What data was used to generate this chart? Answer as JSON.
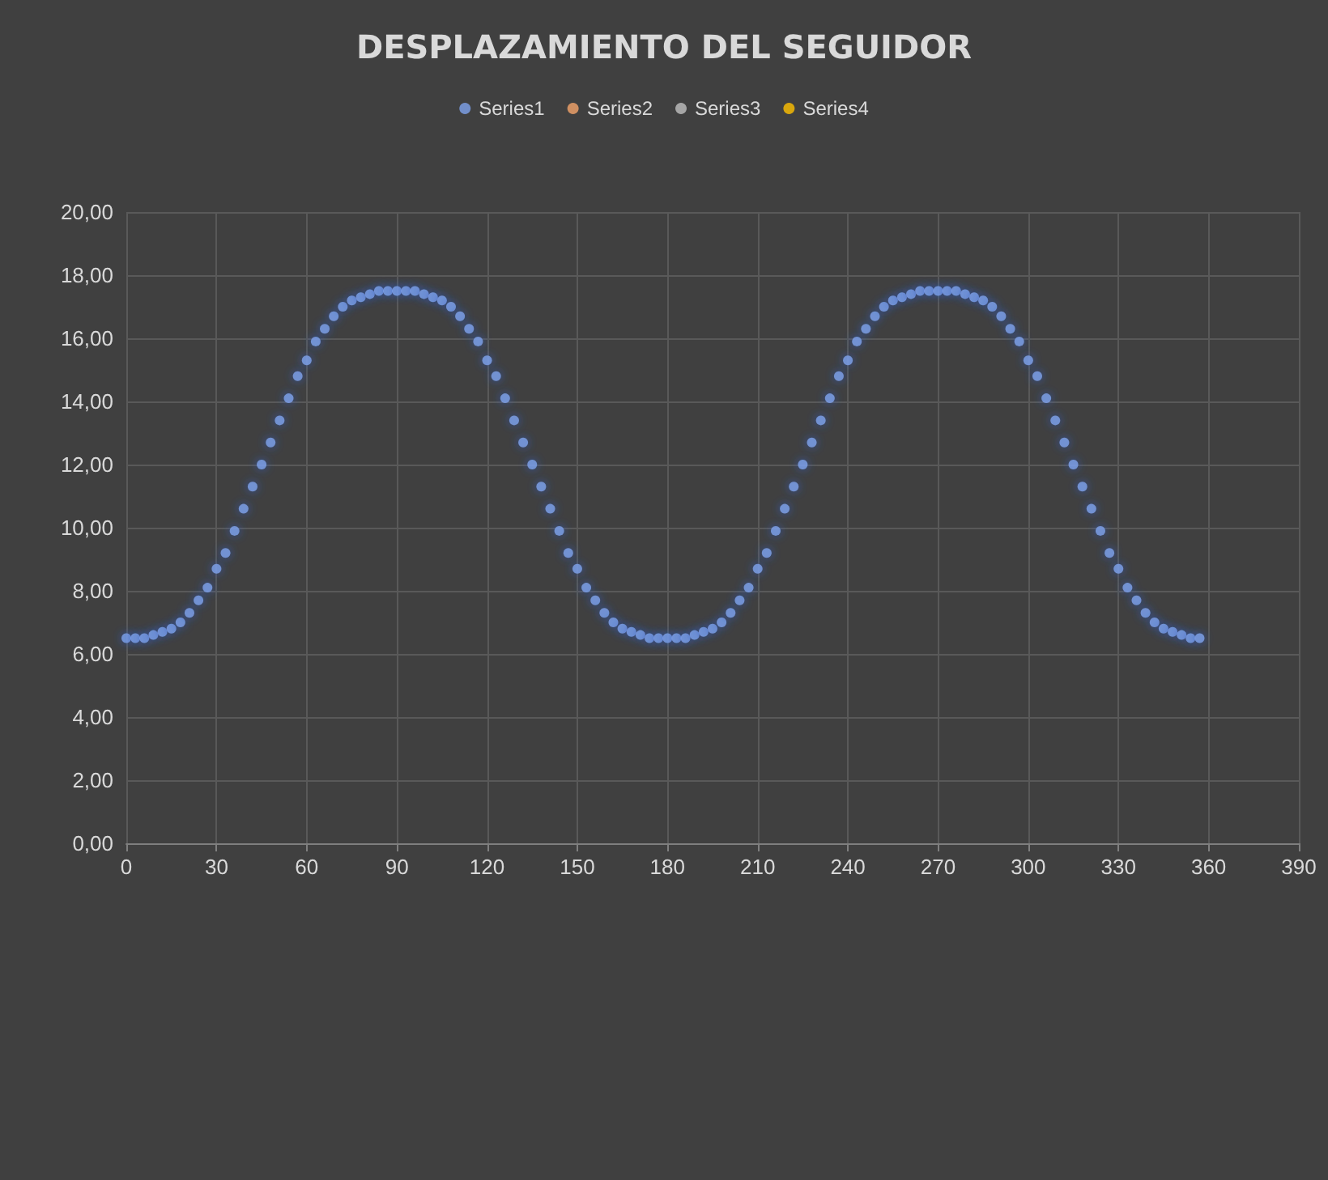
{
  "chart_data": {
    "type": "scatter",
    "title": "DESPLAZAMIENTO DEL SEGUIDOR",
    "x": [
      0,
      3,
      6,
      9,
      12,
      15,
      18,
      21,
      24,
      27,
      30,
      33,
      36,
      39,
      42,
      45,
      48,
      51,
      54,
      57,
      60,
      63,
      66,
      69,
      72,
      75,
      78,
      81,
      84,
      87,
      90,
      93,
      96,
      99,
      102,
      105,
      108,
      111,
      114,
      117,
      120,
      123,
      126,
      129,
      132,
      135,
      138,
      141,
      144,
      147,
      150,
      153,
      156,
      159,
      162,
      165,
      168,
      171,
      174,
      177,
      180,
      183,
      186,
      189,
      192,
      195,
      198,
      201,
      204,
      207,
      210,
      213,
      216,
      219,
      222,
      225,
      228,
      231,
      234,
      237,
      240,
      243,
      246,
      249,
      252,
      255,
      258,
      261,
      264,
      267,
      270,
      273,
      276,
      279,
      282,
      285,
      288,
      291,
      294,
      297,
      300,
      303,
      306,
      309,
      312,
      315,
      318,
      321,
      324,
      327,
      330,
      333,
      336,
      339,
      342,
      345,
      348,
      351,
      354,
      357
    ],
    "series": [
      {
        "name": "Series1",
        "color": "#7ea3ec",
        "values": [
          6.5,
          6.5,
          6.5,
          6.6,
          6.7,
          6.8,
          7.0,
          7.3,
          7.7,
          8.1,
          8.7,
          9.2,
          9.9,
          10.6,
          11.3,
          12.0,
          12.7,
          13.4,
          14.1,
          14.8,
          15.3,
          15.9,
          16.3,
          16.7,
          17.0,
          17.2,
          17.3,
          17.4,
          17.5,
          17.5,
          17.5,
          17.5,
          17.5,
          17.4,
          17.3,
          17.2,
          17.0,
          16.7,
          16.3,
          15.9,
          15.3,
          14.8,
          14.1,
          13.4,
          12.7,
          12.0,
          11.3,
          10.6,
          9.9,
          9.2,
          8.7,
          8.1,
          7.7,
          7.3,
          7.0,
          6.8,
          6.7,
          6.6,
          6.5,
          6.5,
          6.5,
          6.5,
          6.5,
          6.6,
          6.7,
          6.8,
          7.0,
          7.3,
          7.7,
          8.1,
          8.7,
          9.2,
          9.9,
          10.6,
          11.3,
          12.0,
          12.7,
          13.4,
          14.1,
          14.8,
          15.3,
          15.9,
          16.3,
          16.7,
          17.0,
          17.2,
          17.3,
          17.4,
          17.5,
          17.5,
          17.5,
          17.5,
          17.5,
          17.4,
          17.3,
          17.2,
          17.0,
          16.7,
          16.3,
          15.9,
          15.3,
          14.8,
          14.1,
          13.4,
          12.7,
          12.0,
          11.3,
          10.6,
          9.9,
          9.2,
          8.7,
          8.1,
          7.7,
          7.3,
          7.0,
          6.8,
          6.7,
          6.6,
          6.5,
          6.5
        ]
      },
      {
        "name": "Series2",
        "color": "#f4a46a",
        "values": [
          null,
          null,
          null,
          null,
          null,
          null,
          null,
          null,
          null,
          null,
          null,
          null,
          null,
          null,
          null,
          null,
          null,
          null,
          null,
          null,
          null,
          null,
          null,
          null,
          null,
          null,
          null,
          null,
          null,
          null,
          null,
          null,
          null,
          null,
          null,
          null,
          null,
          null,
          null,
          null,
          null,
          null,
          null,
          null,
          null,
          null,
          null,
          null,
          null,
          null,
          null,
          null,
          null,
          null,
          null,
          null,
          null,
          null,
          null,
          null,
          null,
          null,
          null,
          null,
          null,
          null,
          null,
          null,
          null,
          null,
          null,
          null,
          null,
          null,
          null,
          null,
          null,
          null,
          null,
          null,
          null,
          null,
          null,
          null,
          null,
          null,
          null,
          null,
          null,
          null,
          null,
          null,
          null,
          null,
          null,
          null,
          null,
          null,
          null,
          null,
          null,
          null,
          null,
          null,
          null,
          null,
          null,
          null,
          null,
          null,
          null,
          null,
          null,
          null,
          null,
          null,
          null,
          null,
          null,
          null
        ]
      },
      {
        "name": "Series3",
        "color": "#bfbfbf",
        "values": [
          null,
          null,
          null,
          null,
          null,
          null,
          null,
          null,
          null,
          null,
          null,
          null,
          null,
          null,
          null,
          null,
          null,
          null,
          null,
          null,
          null,
          null,
          null,
          null,
          null,
          null,
          null,
          null,
          null,
          null,
          null,
          null,
          null,
          null,
          null,
          null,
          null,
          null,
          null,
          null,
          null,
          null,
          null,
          null,
          null,
          null,
          null,
          null,
          null,
          null,
          null,
          null,
          null,
          null,
          null,
          null,
          null,
          null,
          null,
          null,
          null,
          null,
          null,
          null,
          null,
          null,
          null,
          null,
          null,
          null,
          null,
          null,
          null,
          null,
          null,
          null,
          null,
          null,
          null,
          null,
          null,
          null,
          null,
          null,
          null,
          null,
          null,
          null,
          null,
          null,
          null,
          null,
          null,
          null,
          null,
          null,
          null,
          null,
          null,
          null,
          null,
          null,
          null,
          null,
          null,
          null,
          null,
          null,
          null,
          null,
          null,
          null,
          null,
          null,
          null,
          null,
          null,
          null,
          null,
          null
        ]
      },
      {
        "name": "Series4",
        "color": "#ffc000",
        "values": [
          null,
          null,
          null,
          null,
          null,
          null,
          null,
          null,
          null,
          null,
          null,
          null,
          null,
          null,
          null,
          null,
          null,
          null,
          null,
          null,
          null,
          null,
          null,
          null,
          null,
          null,
          null,
          null,
          null,
          null,
          null,
          null,
          null,
          null,
          null,
          null,
          null,
          null,
          null,
          null,
          null,
          null,
          null,
          null,
          null,
          null,
          null,
          null,
          null,
          null,
          null,
          null,
          null,
          null,
          null,
          null,
          null,
          null,
          null,
          null,
          null,
          null,
          null,
          null,
          null,
          null,
          null,
          null,
          null,
          null,
          null,
          null,
          null,
          null,
          null,
          null,
          null,
          null,
          null,
          null,
          null,
          null,
          null,
          null,
          null,
          null,
          null,
          null,
          null,
          null,
          null,
          null,
          null,
          null,
          null,
          null,
          null,
          null,
          null,
          null,
          null,
          null,
          null,
          null,
          null,
          null,
          null,
          null,
          null,
          null,
          null,
          null,
          null,
          null,
          null,
          null,
          null,
          null,
          null,
          null
        ]
      }
    ],
    "xlim": [
      0,
      390
    ],
    "xticks": [
      0,
      30,
      60,
      90,
      120,
      150,
      180,
      210,
      240,
      270,
      300,
      330,
      360,
      390
    ],
    "ylim": [
      0,
      20
    ],
    "yticks": [
      {
        "value": 0,
        "label": "0,00"
      },
      {
        "value": 2,
        "label": "2,00"
      },
      {
        "value": 4,
        "label": "4,00"
      },
      {
        "value": 6,
        "label": "6,00"
      },
      {
        "value": 8,
        "label": "8,00"
      },
      {
        "value": 10,
        "label": "10,00"
      },
      {
        "value": 12,
        "label": "12,00"
      },
      {
        "value": 14,
        "label": "14,00"
      },
      {
        "value": 16,
        "label": "16,00"
      },
      {
        "value": 18,
        "label": "18,00"
      },
      {
        "value": 20,
        "label": "20,00"
      }
    ],
    "grid": true,
    "legend": "top",
    "marker": "circle"
  }
}
